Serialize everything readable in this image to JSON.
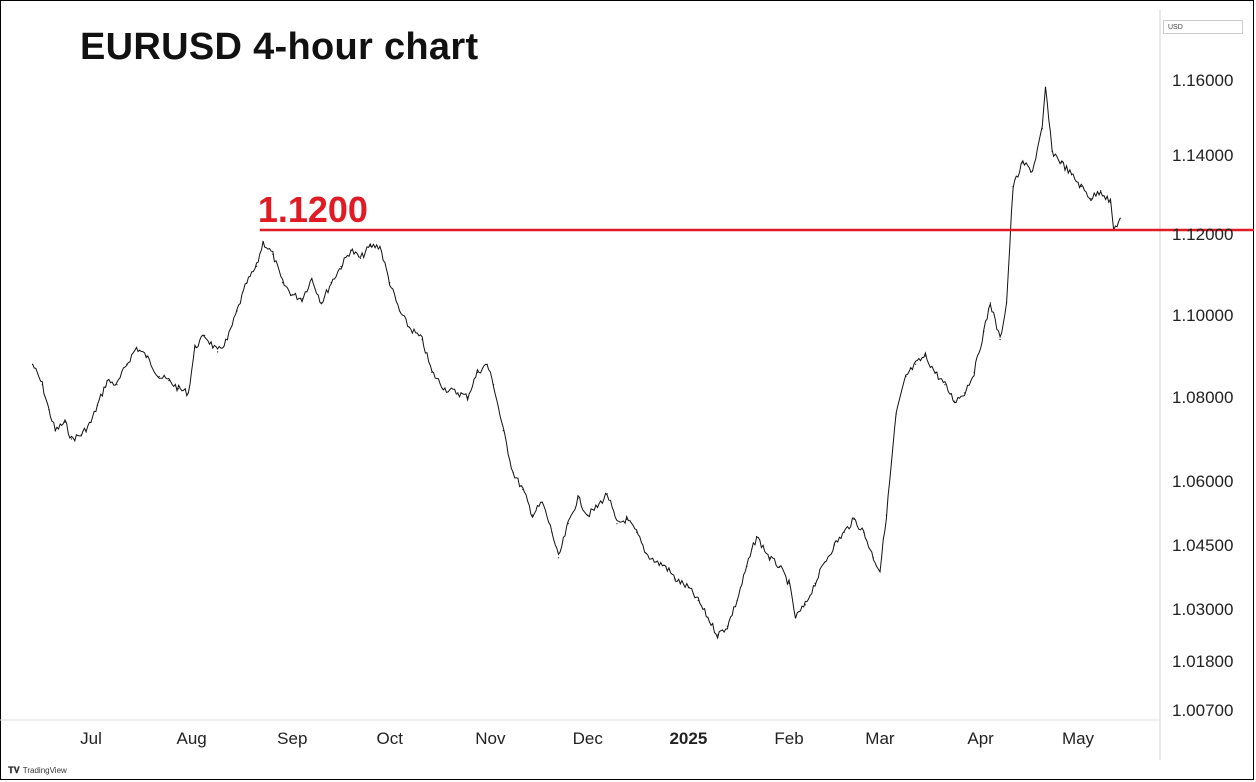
{
  "chart_data": {
    "type": "line",
    "title": "EURUSD 4-hour chart",
    "currency": "USD",
    "watermark": "TradingView",
    "y_ticks": [
      "1.16000",
      "1.14000",
      "1.12000",
      "1.10000",
      "1.08000",
      "1.06000",
      "1.04500",
      "1.03000",
      "1.01800",
      "1.00700"
    ],
    "y_tick_values": [
      1.16,
      1.14,
      1.12,
      1.1,
      1.08,
      1.06,
      1.045,
      1.03,
      1.018,
      1.007
    ],
    "x_ticks": [
      "Jul",
      "Aug",
      "Sep",
      "Oct",
      "Nov",
      "Dec",
      "2025",
      "Feb",
      "Mar",
      "Apr",
      "May"
    ],
    "x_tick_dates": [
      "2024-07-01",
      "2024-08-01",
      "2024-09-01",
      "2024-10-01",
      "2024-11-01",
      "2024-12-01",
      "2025-01-01",
      "2025-02-01",
      "2025-03-01",
      "2025-04-01",
      "2025-05-01"
    ],
    "bold_x_tick": "2025",
    "level": {
      "label": "1.1200",
      "value": 1.12,
      "from": "2024-08-22",
      "to_edge": true,
      "color": "#e01b24"
    },
    "series": [
      {
        "x": [
          "2024-06-13",
          "2024-06-16",
          "2024-06-18",
          "2024-06-20",
          "2024-06-23",
          "2024-06-25",
          "2024-06-28",
          "2024-07-01",
          "2024-07-03",
          "2024-07-06",
          "2024-07-09",
          "2024-07-12",
          "2024-07-15",
          "2024-07-18",
          "2024-07-22",
          "2024-07-25",
          "2024-07-28",
          "2024-07-31",
          "2024-08-02",
          "2024-08-05",
          "2024-08-09",
          "2024-08-12",
          "2024-08-15",
          "2024-08-18",
          "2024-08-21",
          "2024-08-23",
          "2024-08-26",
          "2024-08-29",
          "2024-09-01",
          "2024-09-04",
          "2024-09-07",
          "2024-09-10",
          "2024-09-13",
          "2024-09-16",
          "2024-09-19",
          "2024-09-22",
          "2024-09-25",
          "2024-09-28",
          "2024-10-01",
          "2024-10-04",
          "2024-10-07",
          "2024-10-11",
          "2024-10-14",
          "2024-10-18",
          "2024-10-22",
          "2024-10-25",
          "2024-10-28",
          "2024-10-31",
          "2024-11-02",
          "2024-11-05",
          "2024-11-08",
          "2024-11-11",
          "2024-11-14",
          "2024-11-17",
          "2024-11-20",
          "2024-11-22",
          "2024-11-25",
          "2024-11-28",
          "2024-12-01",
          "2024-12-04",
          "2024-12-07",
          "2024-12-10",
          "2024-12-13",
          "2024-12-16",
          "2024-12-19",
          "2024-12-22",
          "2024-12-25",
          "2024-12-28",
          "2025-01-01",
          "2025-01-04",
          "2025-01-07",
          "2025-01-10",
          "2025-01-13",
          "2025-01-16",
          "2025-01-19",
          "2025-01-22",
          "2025-01-26",
          "2025-01-29",
          "2025-02-01",
          "2025-02-03",
          "2025-02-06",
          "2025-02-09",
          "2025-02-12",
          "2025-02-15",
          "2025-02-18",
          "2025-02-21",
          "2025-02-24",
          "2025-02-27",
          "2025-03-01",
          "2025-03-03",
          "2025-03-06",
          "2025-03-09",
          "2025-03-12",
          "2025-03-15",
          "2025-03-18",
          "2025-03-21",
          "2025-03-24",
          "2025-03-27",
          "2025-03-30",
          "2025-04-02",
          "2025-04-04",
          "2025-04-07",
          "2025-04-09",
          "2025-04-11",
          "2025-04-14",
          "2025-04-17",
          "2025-04-20",
          "2025-04-21",
          "2025-04-23",
          "2025-04-26",
          "2025-04-29",
          "2025-05-02",
          "2025-05-05",
          "2025-05-08",
          "2025-05-11",
          "2025-05-12",
          "2025-05-14"
        ],
        "y": [
          1.088,
          1.083,
          1.077,
          1.072,
          1.074,
          1.07,
          1.071,
          1.074,
          1.078,
          1.084,
          1.083,
          1.088,
          1.092,
          1.09,
          1.085,
          1.084,
          1.082,
          1.081,
          1.092,
          1.095,
          1.091,
          1.094,
          1.101,
          1.108,
          1.112,
          1.118,
          1.115,
          1.108,
          1.105,
          1.104,
          1.109,
          1.103,
          1.108,
          1.112,
          1.116,
          1.114,
          1.117,
          1.117,
          1.108,
          1.101,
          1.097,
          1.094,
          1.086,
          1.082,
          1.081,
          1.08,
          1.086,
          1.088,
          1.083,
          1.072,
          1.062,
          1.058,
          1.052,
          1.055,
          1.048,
          1.042,
          1.05,
          1.056,
          1.052,
          1.054,
          1.057,
          1.05,
          1.051,
          1.048,
          1.043,
          1.041,
          1.04,
          1.037,
          1.035,
          1.032,
          1.028,
          1.024,
          1.026,
          1.032,
          1.04,
          1.047,
          1.042,
          1.04,
          1.036,
          1.028,
          1.031,
          1.036,
          1.041,
          1.045,
          1.048,
          1.051,
          1.048,
          1.042,
          1.039,
          1.052,
          1.076,
          1.085,
          1.088,
          1.09,
          1.086,
          1.083,
          1.079,
          1.081,
          1.086,
          1.096,
          1.103,
          1.094,
          1.103,
          1.132,
          1.138,
          1.136,
          1.147,
          1.158,
          1.141,
          1.138,
          1.135,
          1.132,
          1.129,
          1.131,
          1.128,
          1.121,
          1.124
        ]
      }
    ],
    "xlabel": "",
    "ylabel": ""
  }
}
